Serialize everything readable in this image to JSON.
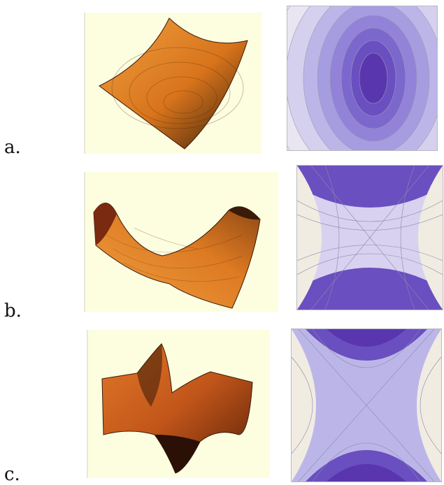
{
  "rows": [
    {
      "label": "a.",
      "surface": "paraboloid",
      "contour": "elliptic-minimum"
    },
    {
      "label": "b.",
      "surface": "saddle",
      "contour": "saddle"
    },
    {
      "label": "c.",
      "surface": "monkey-saddle",
      "contour": "monkey-saddle"
    }
  ],
  "colors": {
    "surface_background": "#fdfde0",
    "surface_orange": "#e8892a",
    "surface_dark": "#3a1a08",
    "contour_dark": "#5a1fa0",
    "contour_light": "#f1ece2"
  }
}
